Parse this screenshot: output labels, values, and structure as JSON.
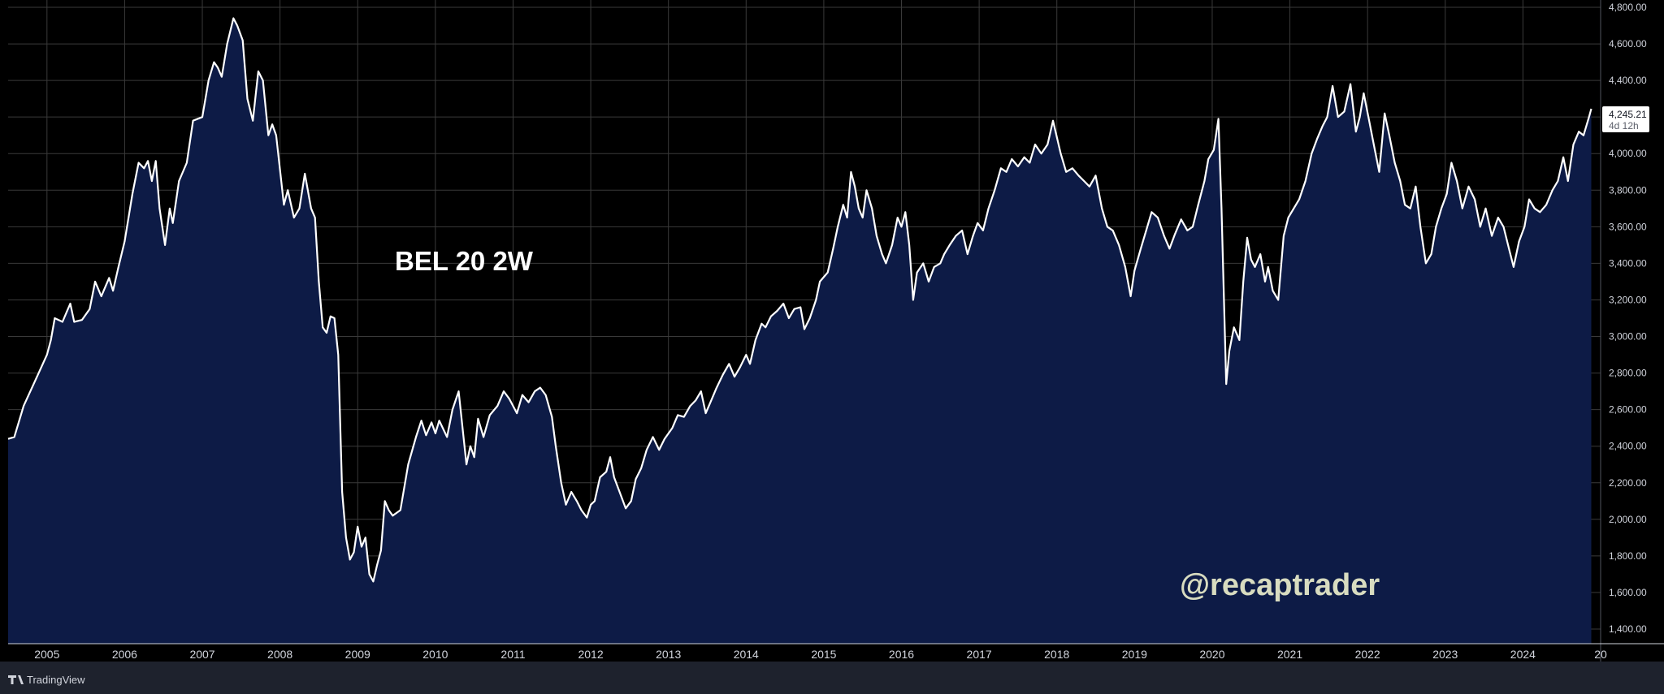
{
  "chart_data": {
    "type": "area",
    "title": "BEL 20 2W",
    "watermark": "@recaptrader",
    "branding": "TradingView",
    "colors": {
      "background": "#000000",
      "line": "#ffffff",
      "fill": "#0d1b46",
      "grid": "#3a3a3a",
      "axis_bg": "#000000"
    },
    "grid": true,
    "ylim": [
      1320,
      4840
    ],
    "xlim": [
      2004.5,
      2025.0
    ],
    "y_ticks": [
      "1,400.00",
      "1,600.00",
      "1,800.00",
      "2,000.00",
      "2,200.00",
      "2,400.00",
      "2,600.00",
      "2,800.00",
      "3,000.00",
      "3,200.00",
      "3,400.00",
      "3,600.00",
      "3,800.00",
      "4,000.00",
      "4,200.00",
      "4,400.00",
      "4,600.00",
      "4,800.00"
    ],
    "x_ticks": [
      "2005",
      "2006",
      "2007",
      "2008",
      "2009",
      "2010",
      "2011",
      "2012",
      "2013",
      "2014",
      "2015",
      "2016",
      "2017",
      "2018",
      "2019",
      "2020",
      "2021",
      "2022",
      "2023",
      "2024",
      "20"
    ],
    "last_price": {
      "value": "4,245.21",
      "countdown": "4d 12h"
    },
    "series": [
      {
        "values": [
          [
            2004.5,
            2440
          ],
          [
            2004.58,
            2450
          ],
          [
            2004.7,
            2620
          ],
          [
            2004.85,
            2760
          ],
          [
            2005.0,
            2900
          ],
          [
            2005.05,
            2980
          ],
          [
            2005.1,
            3100
          ],
          [
            2005.2,
            3080
          ],
          [
            2005.3,
            3180
          ],
          [
            2005.35,
            3080
          ],
          [
            2005.45,
            3090
          ],
          [
            2005.55,
            3150
          ],
          [
            2005.62,
            3300
          ],
          [
            2005.7,
            3220
          ],
          [
            2005.8,
            3320
          ],
          [
            2005.85,
            3250
          ],
          [
            2005.92,
            3380
          ],
          [
            2006.0,
            3520
          ],
          [
            2006.1,
            3780
          ],
          [
            2006.18,
            3950
          ],
          [
            2006.25,
            3920
          ],
          [
            2006.3,
            3960
          ],
          [
            2006.35,
            3850
          ],
          [
            2006.4,
            3960
          ],
          [
            2006.45,
            3700
          ],
          [
            2006.52,
            3500
          ],
          [
            2006.58,
            3700
          ],
          [
            2006.62,
            3620
          ],
          [
            2006.7,
            3850
          ],
          [
            2006.8,
            3950
          ],
          [
            2006.88,
            4180
          ],
          [
            2007.0,
            4200
          ],
          [
            2007.08,
            4400
          ],
          [
            2007.15,
            4500
          ],
          [
            2007.2,
            4470
          ],
          [
            2007.25,
            4420
          ],
          [
            2007.32,
            4600
          ],
          [
            2007.4,
            4740
          ],
          [
            2007.45,
            4700
          ],
          [
            2007.52,
            4620
          ],
          [
            2007.58,
            4300
          ],
          [
            2007.65,
            4180
          ],
          [
            2007.72,
            4450
          ],
          [
            2007.78,
            4400
          ],
          [
            2007.85,
            4100
          ],
          [
            2007.9,
            4160
          ],
          [
            2007.95,
            4100
          ],
          [
            2008.05,
            3720
          ],
          [
            2008.1,
            3800
          ],
          [
            2008.18,
            3650
          ],
          [
            2008.25,
            3700
          ],
          [
            2008.32,
            3890
          ],
          [
            2008.4,
            3700
          ],
          [
            2008.45,
            3650
          ],
          [
            2008.5,
            3300
          ],
          [
            2008.55,
            3050
          ],
          [
            2008.6,
            3020
          ],
          [
            2008.65,
            3110
          ],
          [
            2008.7,
            3100
          ],
          [
            2008.75,
            2900
          ],
          [
            2008.8,
            2150
          ],
          [
            2008.85,
            1900
          ],
          [
            2008.9,
            1780
          ],
          [
            2008.95,
            1820
          ],
          [
            2009.0,
            1960
          ],
          [
            2009.05,
            1850
          ],
          [
            2009.1,
            1900
          ],
          [
            2009.15,
            1700
          ],
          [
            2009.2,
            1660
          ],
          [
            2009.25,
            1750
          ],
          [
            2009.3,
            1830
          ],
          [
            2009.35,
            2100
          ],
          [
            2009.4,
            2050
          ],
          [
            2009.45,
            2020
          ],
          [
            2009.55,
            2050
          ],
          [
            2009.65,
            2300
          ],
          [
            2009.75,
            2450
          ],
          [
            2009.82,
            2540
          ],
          [
            2009.88,
            2460
          ],
          [
            2009.95,
            2530
          ],
          [
            2010.0,
            2470
          ],
          [
            2010.05,
            2540
          ],
          [
            2010.15,
            2450
          ],
          [
            2010.22,
            2600
          ],
          [
            2010.3,
            2700
          ],
          [
            2010.35,
            2500
          ],
          [
            2010.4,
            2300
          ],
          [
            2010.45,
            2400
          ],
          [
            2010.5,
            2340
          ],
          [
            2010.55,
            2550
          ],
          [
            2010.62,
            2450
          ],
          [
            2010.7,
            2570
          ],
          [
            2010.8,
            2620
          ],
          [
            2010.88,
            2700
          ],
          [
            2010.95,
            2660
          ],
          [
            2011.05,
            2580
          ],
          [
            2011.12,
            2680
          ],
          [
            2011.2,
            2640
          ],
          [
            2011.28,
            2700
          ],
          [
            2011.35,
            2720
          ],
          [
            2011.42,
            2680
          ],
          [
            2011.5,
            2560
          ],
          [
            2011.55,
            2400
          ],
          [
            2011.62,
            2200
          ],
          [
            2011.68,
            2080
          ],
          [
            2011.75,
            2150
          ],
          [
            2011.82,
            2100
          ],
          [
            2011.88,
            2050
          ],
          [
            2011.95,
            2010
          ],
          [
            2012.0,
            2080
          ],
          [
            2012.05,
            2100
          ],
          [
            2012.12,
            2230
          ],
          [
            2012.2,
            2260
          ],
          [
            2012.25,
            2340
          ],
          [
            2012.3,
            2230
          ],
          [
            2012.38,
            2140
          ],
          [
            2012.45,
            2060
          ],
          [
            2012.52,
            2100
          ],
          [
            2012.58,
            2220
          ],
          [
            2012.65,
            2280
          ],
          [
            2012.72,
            2380
          ],
          [
            2012.8,
            2450
          ],
          [
            2012.88,
            2380
          ],
          [
            2012.95,
            2440
          ],
          [
            2013.05,
            2500
          ],
          [
            2013.12,
            2570
          ],
          [
            2013.2,
            2560
          ],
          [
            2013.28,
            2620
          ],
          [
            2013.35,
            2650
          ],
          [
            2013.42,
            2700
          ],
          [
            2013.48,
            2580
          ],
          [
            2013.55,
            2650
          ],
          [
            2013.62,
            2720
          ],
          [
            2013.7,
            2790
          ],
          [
            2013.78,
            2850
          ],
          [
            2013.85,
            2780
          ],
          [
            2013.92,
            2830
          ],
          [
            2014.0,
            2900
          ],
          [
            2014.05,
            2850
          ],
          [
            2014.12,
            2980
          ],
          [
            2014.2,
            3070
          ],
          [
            2014.25,
            3050
          ],
          [
            2014.32,
            3110
          ],
          [
            2014.4,
            3140
          ],
          [
            2014.48,
            3180
          ],
          [
            2014.55,
            3100
          ],
          [
            2014.62,
            3150
          ],
          [
            2014.7,
            3160
          ],
          [
            2014.75,
            3040
          ],
          [
            2014.82,
            3100
          ],
          [
            2014.9,
            3200
          ],
          [
            2014.95,
            3300
          ],
          [
            2015.05,
            3350
          ],
          [
            2015.12,
            3480
          ],
          [
            2015.18,
            3600
          ],
          [
            2015.25,
            3720
          ],
          [
            2015.3,
            3650
          ],
          [
            2015.35,
            3900
          ],
          [
            2015.4,
            3820
          ],
          [
            2015.45,
            3700
          ],
          [
            2015.5,
            3650
          ],
          [
            2015.55,
            3800
          ],
          [
            2015.62,
            3700
          ],
          [
            2015.68,
            3550
          ],
          [
            2015.75,
            3450
          ],
          [
            2015.8,
            3400
          ],
          [
            2015.88,
            3500
          ],
          [
            2015.95,
            3650
          ],
          [
            2016.0,
            3600
          ],
          [
            2016.05,
            3680
          ],
          [
            2016.1,
            3500
          ],
          [
            2016.15,
            3200
          ],
          [
            2016.2,
            3350
          ],
          [
            2016.28,
            3400
          ],
          [
            2016.35,
            3300
          ],
          [
            2016.42,
            3380
          ],
          [
            2016.5,
            3400
          ],
          [
            2016.55,
            3450
          ],
          [
            2016.62,
            3500
          ],
          [
            2016.7,
            3550
          ],
          [
            2016.78,
            3580
          ],
          [
            2016.85,
            3450
          ],
          [
            2016.92,
            3550
          ],
          [
            2016.98,
            3620
          ],
          [
            2017.05,
            3580
          ],
          [
            2017.12,
            3700
          ],
          [
            2017.2,
            3800
          ],
          [
            2017.28,
            3920
          ],
          [
            2017.35,
            3900
          ],
          [
            2017.42,
            3970
          ],
          [
            2017.5,
            3930
          ],
          [
            2017.58,
            3980
          ],
          [
            2017.65,
            3950
          ],
          [
            2017.72,
            4050
          ],
          [
            2017.8,
            4000
          ],
          [
            2017.88,
            4050
          ],
          [
            2017.95,
            4180
          ],
          [
            2018.05,
            4000
          ],
          [
            2018.12,
            3900
          ],
          [
            2018.2,
            3920
          ],
          [
            2018.28,
            3880
          ],
          [
            2018.35,
            3850
          ],
          [
            2018.42,
            3820
          ],
          [
            2018.5,
            3880
          ],
          [
            2018.58,
            3700
          ],
          [
            2018.65,
            3600
          ],
          [
            2018.72,
            3580
          ],
          [
            2018.8,
            3500
          ],
          [
            2018.88,
            3380
          ],
          [
            2018.95,
            3220
          ],
          [
            2019.0,
            3360
          ],
          [
            2019.08,
            3480
          ],
          [
            2019.15,
            3580
          ],
          [
            2019.22,
            3680
          ],
          [
            2019.3,
            3650
          ],
          [
            2019.38,
            3550
          ],
          [
            2019.45,
            3480
          ],
          [
            2019.52,
            3560
          ],
          [
            2019.6,
            3640
          ],
          [
            2019.68,
            3580
          ],
          [
            2019.75,
            3600
          ],
          [
            2019.82,
            3720
          ],
          [
            2019.9,
            3850
          ],
          [
            2019.95,
            3970
          ],
          [
            2020.02,
            4020
          ],
          [
            2020.08,
            4190
          ],
          [
            2020.12,
            3700
          ],
          [
            2020.18,
            2740
          ],
          [
            2020.22,
            2920
          ],
          [
            2020.28,
            3050
          ],
          [
            2020.35,
            2980
          ],
          [
            2020.4,
            3300
          ],
          [
            2020.45,
            3540
          ],
          [
            2020.5,
            3420
          ],
          [
            2020.55,
            3380
          ],
          [
            2020.62,
            3450
          ],
          [
            2020.68,
            3300
          ],
          [
            2020.72,
            3380
          ],
          [
            2020.78,
            3250
          ],
          [
            2020.85,
            3200
          ],
          [
            2020.92,
            3550
          ],
          [
            2020.98,
            3650
          ],
          [
            2021.05,
            3700
          ],
          [
            2021.12,
            3750
          ],
          [
            2021.2,
            3850
          ],
          [
            2021.28,
            4000
          ],
          [
            2021.35,
            4080
          ],
          [
            2021.42,
            4150
          ],
          [
            2021.48,
            4200
          ],
          [
            2021.55,
            4370
          ],
          [
            2021.62,
            4200
          ],
          [
            2021.7,
            4230
          ],
          [
            2021.78,
            4380
          ],
          [
            2021.85,
            4120
          ],
          [
            2021.9,
            4200
          ],
          [
            2021.95,
            4330
          ],
          [
            2022.02,
            4180
          ],
          [
            2022.08,
            4050
          ],
          [
            2022.15,
            3900
          ],
          [
            2022.22,
            4220
          ],
          [
            2022.28,
            4100
          ],
          [
            2022.35,
            3950
          ],
          [
            2022.42,
            3850
          ],
          [
            2022.48,
            3720
          ],
          [
            2022.55,
            3700
          ],
          [
            2022.62,
            3820
          ],
          [
            2022.68,
            3600
          ],
          [
            2022.75,
            3400
          ],
          [
            2022.82,
            3450
          ],
          [
            2022.88,
            3600
          ],
          [
            2022.95,
            3700
          ],
          [
            2023.02,
            3780
          ],
          [
            2023.08,
            3950
          ],
          [
            2023.15,
            3850
          ],
          [
            2023.22,
            3700
          ],
          [
            2023.3,
            3820
          ],
          [
            2023.38,
            3750
          ],
          [
            2023.45,
            3600
          ],
          [
            2023.52,
            3700
          ],
          [
            2023.6,
            3550
          ],
          [
            2023.68,
            3650
          ],
          [
            2023.75,
            3600
          ],
          [
            2023.82,
            3480
          ],
          [
            2023.88,
            3380
          ],
          [
            2023.95,
            3520
          ],
          [
            2024.02,
            3600
          ],
          [
            2024.08,
            3750
          ],
          [
            2024.15,
            3700
          ],
          [
            2024.22,
            3680
          ],
          [
            2024.3,
            3720
          ],
          [
            2024.38,
            3800
          ],
          [
            2024.45,
            3850
          ],
          [
            2024.52,
            3980
          ],
          [
            2024.58,
            3850
          ],
          [
            2024.65,
            4050
          ],
          [
            2024.72,
            4120
          ],
          [
            2024.78,
            4100
          ],
          [
            2024.85,
            4200
          ],
          [
            2024.88,
            4245
          ]
        ]
      }
    ]
  }
}
